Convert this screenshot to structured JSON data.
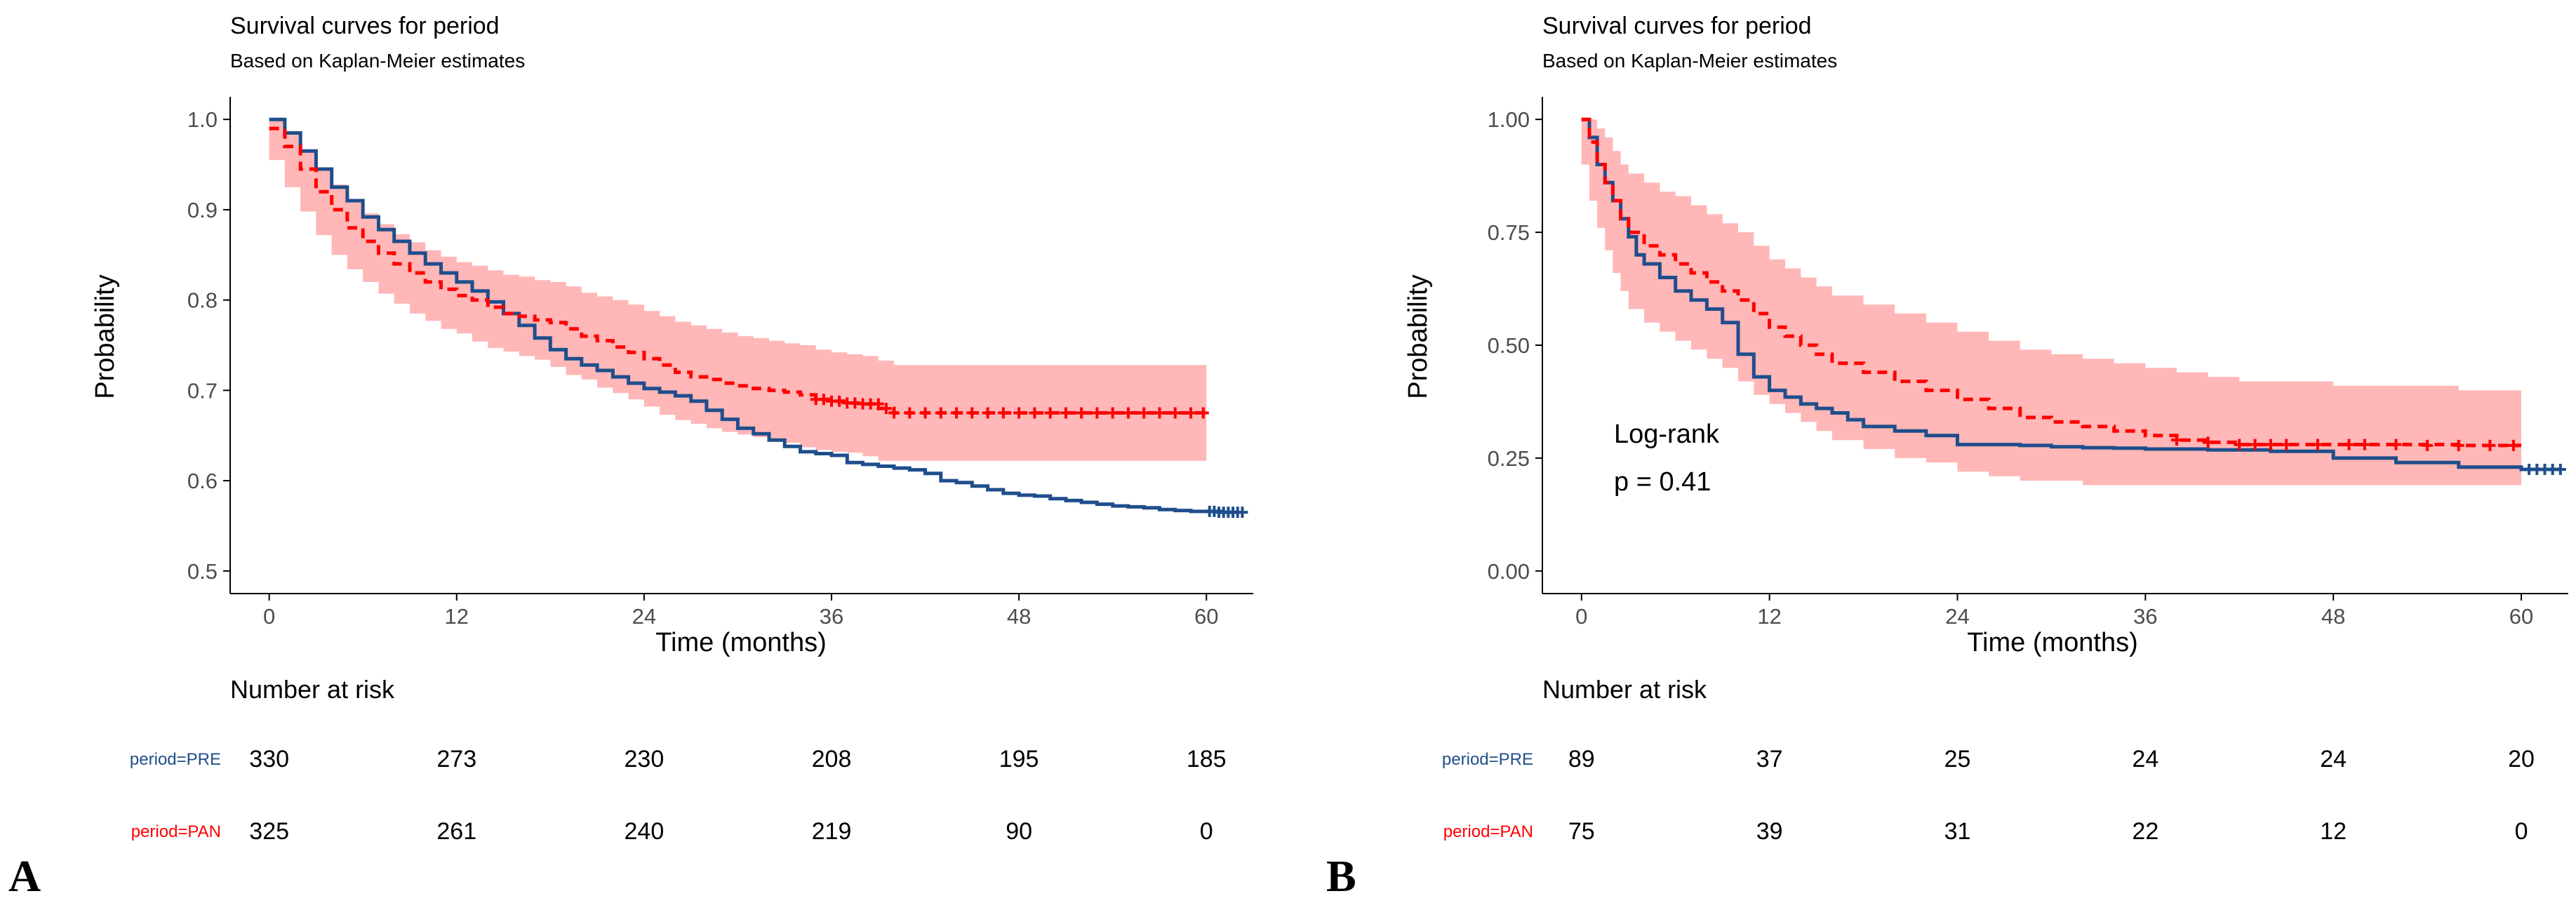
{
  "colors": {
    "pre": "#1f4e8c",
    "pan": "#ff0000",
    "band": "#ffb3b3",
    "axis": "#000000",
    "tick_text": "#4d4d4d"
  },
  "chart_data": [
    {
      "panel_label": "A",
      "type": "line",
      "title": "Survival curves for period",
      "subtitle": "Based on Kaplan-Meier estimates",
      "xlabel": "Time (months)",
      "ylabel": "Probability",
      "xlim": [
        -2.5,
        63
      ],
      "ylim": [
        0.475,
        1.025
      ],
      "xticks": [
        0,
        12,
        24,
        36,
        48,
        60
      ],
      "yticks": [
        0.5,
        0.6,
        0.7,
        0.8,
        0.9,
        1.0
      ],
      "ytick_labels": [
        "0.5",
        "0.6",
        "0.7",
        "0.8",
        "0.9",
        "1.0"
      ],
      "series": [
        {
          "name": "period=PRE",
          "style": "solid",
          "x": [
            0,
            1,
            2,
            3,
            4,
            5,
            6,
            7,
            8,
            9,
            10,
            11,
            12,
            13,
            14,
            15,
            16,
            17,
            18,
            19,
            20,
            21,
            22,
            23,
            24,
            25,
            26,
            27,
            28,
            29,
            30,
            31,
            32,
            33,
            34,
            35,
            36,
            37,
            38,
            39,
            40,
            41,
            42,
            43,
            44,
            45,
            46,
            47,
            48,
            49,
            50,
            51,
            52,
            53,
            54,
            55,
            56,
            57,
            58,
            59,
            60,
            61,
            62
          ],
          "y": [
            1.0,
            0.985,
            0.965,
            0.945,
            0.925,
            0.91,
            0.892,
            0.878,
            0.865,
            0.852,
            0.84,
            0.83,
            0.82,
            0.81,
            0.798,
            0.785,
            0.772,
            0.758,
            0.745,
            0.735,
            0.728,
            0.722,
            0.715,
            0.708,
            0.702,
            0.698,
            0.694,
            0.688,
            0.678,
            0.668,
            0.658,
            0.652,
            0.645,
            0.638,
            0.632,
            0.63,
            0.628,
            0.62,
            0.618,
            0.616,
            0.614,
            0.612,
            0.608,
            0.6,
            0.598,
            0.594,
            0.59,
            0.586,
            0.584,
            0.583,
            0.58,
            0.578,
            0.576,
            0.574,
            0.572,
            0.571,
            0.57,
            0.568,
            0.567,
            0.566,
            0.566,
            0.565,
            0.565
          ],
          "censor_x": [
            60.2,
            60.5,
            60.8,
            61.1,
            61.4,
            61.7,
            62.0,
            62.3
          ],
          "censor_y": [
            0.566,
            0.566,
            0.565,
            0.565,
            0.565,
            0.565,
            0.565,
            0.565
          ]
        },
        {
          "name": "period=PAN",
          "style": "dashed",
          "x": [
            0,
            1,
            2,
            3,
            4,
            5,
            6,
            7,
            8,
            9,
            10,
            11,
            12,
            13,
            14,
            15,
            16,
            17,
            18,
            19,
            20,
            21,
            22,
            23,
            24,
            25,
            26,
            27,
            28,
            29,
            30,
            31,
            32,
            33,
            34,
            35,
            36,
            37,
            38,
            39,
            40,
            60
          ],
          "y": [
            0.99,
            0.97,
            0.945,
            0.92,
            0.9,
            0.88,
            0.865,
            0.852,
            0.84,
            0.83,
            0.82,
            0.812,
            0.805,
            0.8,
            0.792,
            0.785,
            0.782,
            0.778,
            0.775,
            0.768,
            0.76,
            0.755,
            0.748,
            0.742,
            0.735,
            0.728,
            0.72,
            0.715,
            0.712,
            0.708,
            0.705,
            0.702,
            0.7,
            0.698,
            0.695,
            0.69,
            0.688,
            0.686,
            0.685,
            0.68,
            0.675,
            0.675
          ],
          "upper": [
            1.0,
            0.985,
            0.965,
            0.945,
            0.928,
            0.91,
            0.896,
            0.884,
            0.873,
            0.864,
            0.855,
            0.848,
            0.842,
            0.838,
            0.833,
            0.828,
            0.826,
            0.822,
            0.82,
            0.815,
            0.808,
            0.804,
            0.8,
            0.795,
            0.788,
            0.782,
            0.776,
            0.772,
            0.768,
            0.764,
            0.76,
            0.758,
            0.755,
            0.752,
            0.75,
            0.745,
            0.742,
            0.74,
            0.738,
            0.733,
            0.728,
            0.728
          ],
          "lower": [
            0.98,
            0.955,
            0.925,
            0.898,
            0.872,
            0.85,
            0.834,
            0.82,
            0.807,
            0.796,
            0.785,
            0.777,
            0.768,
            0.763,
            0.754,
            0.747,
            0.743,
            0.738,
            0.734,
            0.726,
            0.717,
            0.712,
            0.703,
            0.697,
            0.69,
            0.682,
            0.673,
            0.667,
            0.663,
            0.658,
            0.654,
            0.651,
            0.648,
            0.645,
            0.642,
            0.637,
            0.634,
            0.632,
            0.631,
            0.627,
            0.622,
            0.622
          ],
          "censor_x": [
            35.0,
            35.5,
            36.0,
            36.5,
            37.0,
            37.5,
            38.0,
            38.5,
            39.0,
            39.5,
            40.0,
            41.0,
            42.0,
            43.0,
            44.0,
            45.0,
            46.0,
            47.0,
            48.0,
            49.0,
            50.0,
            51.0,
            52.0,
            53.0,
            54.0,
            55.0,
            56.0,
            57.0,
            58.0,
            59.0,
            59.8
          ],
          "censor_y": [
            0.69,
            0.69,
            0.688,
            0.688,
            0.686,
            0.686,
            0.685,
            0.685,
            0.685,
            0.68,
            0.675,
            0.675,
            0.675,
            0.675,
            0.675,
            0.675,
            0.675,
            0.675,
            0.675,
            0.675,
            0.675,
            0.675,
            0.675,
            0.675,
            0.675,
            0.675,
            0.675,
            0.675,
            0.675,
            0.675,
            0.675
          ]
        }
      ],
      "risk_table": {
        "title": "Number at risk",
        "rows": [
          {
            "label": "period=PRE",
            "values": [
              330,
              273,
              230,
              208,
              195,
              185
            ]
          },
          {
            "label": "period=PAN",
            "values": [
              325,
              261,
              240,
              219,
              90,
              0
            ]
          }
        ]
      }
    },
    {
      "panel_label": "B",
      "type": "line",
      "title": "Survival curves for period",
      "subtitle": "Based on Kaplan-Meier estimates",
      "xlabel": "Time (months)",
      "ylabel": "Probability",
      "xlim": [
        -2.5,
        63
      ],
      "ylim": [
        -0.05,
        1.05
      ],
      "xticks": [
        0,
        12,
        24,
        36,
        48,
        60
      ],
      "yticks": [
        0.0,
        0.25,
        0.5,
        0.75,
        1.0
      ],
      "ytick_labels": [
        "0.00",
        "0.25",
        "0.50",
        "0.75",
        "1.00"
      ],
      "annotation": {
        "line1": "Log-rank",
        "line2": "p = 0.41"
      },
      "series": [
        {
          "name": "period=PRE",
          "style": "solid",
          "x": [
            0,
            0.5,
            1,
            1.5,
            2,
            2.5,
            3,
            3.5,
            4,
            5,
            6,
            7,
            8,
            9,
            10,
            11,
            12,
            13,
            14,
            15,
            16,
            17,
            18,
            20,
            22,
            24,
            26,
            28,
            30,
            32,
            34,
            36,
            40,
            44,
            48,
            52,
            56,
            60,
            62.5
          ],
          "y": [
            1.0,
            0.96,
            0.9,
            0.86,
            0.82,
            0.78,
            0.74,
            0.7,
            0.68,
            0.65,
            0.62,
            0.6,
            0.58,
            0.55,
            0.48,
            0.43,
            0.4,
            0.385,
            0.37,
            0.36,
            0.35,
            0.335,
            0.32,
            0.31,
            0.3,
            0.28,
            0.28,
            0.278,
            0.275,
            0.273,
            0.272,
            0.27,
            0.268,
            0.265,
            0.25,
            0.24,
            0.23,
            0.225,
            0.225
          ],
          "censor_x": [
            60.5,
            61.0,
            61.5,
            62.0,
            62.5
          ],
          "censor_y": [
            0.225,
            0.225,
            0.225,
            0.225,
            0.225
          ]
        },
        {
          "name": "period=PAN",
          "style": "dashed",
          "x": [
            0,
            0.5,
            1,
            1.5,
            2,
            2.5,
            3,
            4,
            5,
            6,
            7,
            8,
            9,
            10,
            11,
            12,
            13,
            14,
            15,
            16,
            18,
            20,
            22,
            24,
            26,
            28,
            30,
            32,
            34,
            36,
            38,
            40,
            42,
            44,
            48,
            52,
            56,
            60
          ],
          "y": [
            1.0,
            0.95,
            0.9,
            0.86,
            0.82,
            0.78,
            0.75,
            0.72,
            0.7,
            0.68,
            0.66,
            0.64,
            0.62,
            0.6,
            0.57,
            0.54,
            0.52,
            0.5,
            0.48,
            0.46,
            0.44,
            0.42,
            0.4,
            0.38,
            0.36,
            0.34,
            0.33,
            0.32,
            0.31,
            0.3,
            0.29,
            0.285,
            0.28,
            0.28,
            0.28,
            0.28,
            0.278,
            0.278
          ],
          "upper": [
            1.0,
            1.0,
            0.98,
            0.96,
            0.93,
            0.9,
            0.88,
            0.86,
            0.84,
            0.83,
            0.81,
            0.79,
            0.77,
            0.75,
            0.72,
            0.69,
            0.67,
            0.65,
            0.63,
            0.61,
            0.59,
            0.57,
            0.55,
            0.53,
            0.51,
            0.49,
            0.48,
            0.47,
            0.46,
            0.45,
            0.44,
            0.43,
            0.42,
            0.42,
            0.41,
            0.41,
            0.4,
            0.4
          ],
          "lower": [
            1.0,
            0.9,
            0.82,
            0.76,
            0.71,
            0.66,
            0.62,
            0.58,
            0.55,
            0.53,
            0.51,
            0.49,
            0.47,
            0.45,
            0.42,
            0.39,
            0.37,
            0.35,
            0.33,
            0.31,
            0.29,
            0.27,
            0.25,
            0.24,
            0.22,
            0.21,
            0.2,
            0.2,
            0.19,
            0.19,
            0.19,
            0.19,
            0.19,
            0.19,
            0.19,
            0.19,
            0.19,
            0.19
          ],
          "censor_x": [
            38,
            40,
            42,
            43,
            44,
            45,
            47,
            49,
            50,
            52,
            54,
            56,
            58,
            59.5
          ],
          "censor_y": [
            0.29,
            0.285,
            0.28,
            0.28,
            0.28,
            0.28,
            0.28,
            0.28,
            0.28,
            0.28,
            0.278,
            0.278,
            0.278,
            0.278
          ]
        }
      ],
      "risk_table": {
        "title": "Number at risk",
        "rows": [
          {
            "label": "period=PRE",
            "values": [
              89,
              37,
              25,
              24,
              24,
              20
            ]
          },
          {
            "label": "period=PAN",
            "values": [
              75,
              39,
              31,
              22,
              12,
              0
            ]
          }
        ]
      }
    }
  ]
}
